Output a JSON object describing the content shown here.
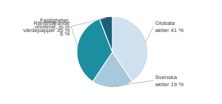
{
  "chart_data": {
    "type": "pie",
    "categories": [
      "Globala\naktier 41 %",
      "Svenska\naktier 19 %",
      "Räntebärande\nvärdepapper 35 %",
      "Fastigheter,\nonoterat, m m\n6 %"
    ],
    "values": [
      41,
      19,
      35,
      6
    ],
    "colors": [
      "#cfe0ee",
      "#a8c8dd",
      "#1b8fa0",
      "#1a607a"
    ]
  }
}
